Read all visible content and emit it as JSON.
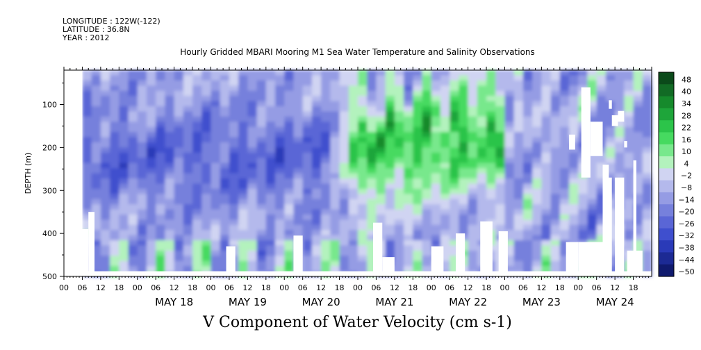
{
  "header": {
    "longitude": "LONGITUDE : 122W(-122)",
    "latitude": "LATITUDE : 36.8N",
    "year": "YEAR : 2012"
  },
  "chart_data": {
    "type": "heatmap",
    "title": "Hourly Gridded MBARI Mooring M1 Sea Water Temperature and Salinity Observations",
    "xlabel": "V Component of Water Velocity (cm s-1)",
    "ylabel": "DEPTH (m)",
    "ylim": [
      500,
      20
    ],
    "y_ticks": [
      100,
      200,
      300,
      400,
      500
    ],
    "x_start": "2012-05-17 00:00",
    "x_end": "2012-05-24 23:00",
    "hour_ticks": [
      "00",
      "06",
      "12",
      "18",
      "00",
      "06",
      "12",
      "18",
      "00",
      "06",
      "12",
      "18",
      "00",
      "06",
      "12",
      "18",
      "00",
      "06",
      "12",
      "18",
      "00",
      "06",
      "12",
      "18",
      "00",
      "06",
      "12",
      "18",
      "00",
      "06",
      "12",
      "18"
    ],
    "day_labels": [
      "MAY 18",
      "MAY 19",
      "MAY 20",
      "MAY 21",
      "MAY 22",
      "MAY 23",
      "MAY 24"
    ],
    "colorbar_levels": [
      48,
      40,
      34,
      28,
      22,
      16,
      10,
      4,
      -2,
      -8,
      -14,
      -20,
      -26,
      -32,
      -38,
      -44,
      -50
    ],
    "colorbar_colors": [
      "#0b4a1a",
      "#126b25",
      "#168a2c",
      "#1ea53a",
      "#2cc44a",
      "#46da60",
      "#78e88c",
      "#b3f2bd",
      "#d0d4f2",
      "#b4b9ec",
      "#959ce4",
      "#7680dc",
      "#5a66d6",
      "#3f4fce",
      "#2a3ab8",
      "#1c2a94",
      "#101a6e"
    ],
    "series_summary": [
      {
        "period": "May 17 06:00 - May 20 12:00",
        "depth": "100-450 m",
        "v_range": [
          -38,
          -8
        ]
      },
      {
        "period": "May 21 00:00 - May 22 18:00",
        "depth": "150-400 m",
        "v_range": [
          4,
          22
        ]
      },
      {
        "period": "May 22 18:00 - May 24 20:00",
        "depth": "20-470 m",
        "v_range": [
          -32,
          10
        ]
      }
    ]
  }
}
